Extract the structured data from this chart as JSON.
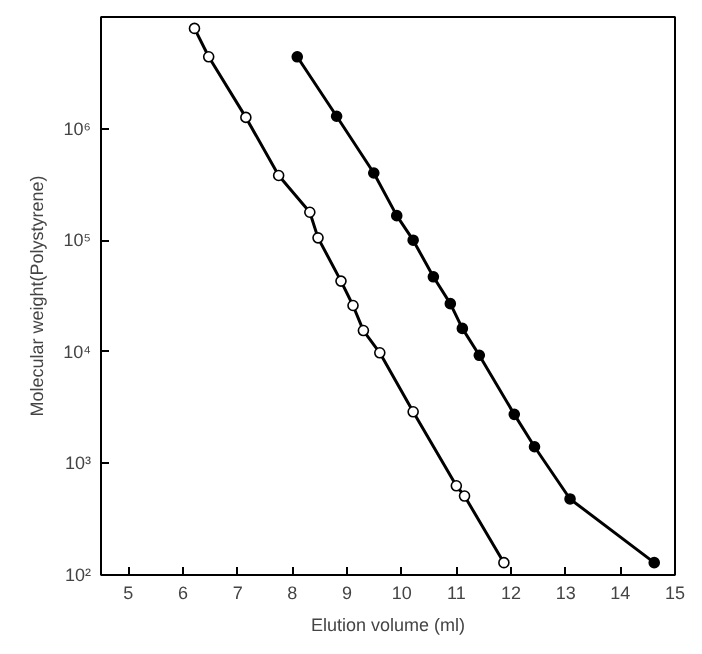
{
  "chart_data": {
    "type": "line",
    "xlabel": "Elution volume (ml)",
    "ylabel": "Molecular weight(Polystyrene)",
    "log": "y",
    "grid": false,
    "line_style": "solid",
    "xlim": [
      4.5,
      15
    ],
    "xticks": [
      5,
      6,
      7,
      8,
      9,
      10,
      11,
      12,
      13,
      14,
      15
    ],
    "ylim": [
      100,
      10000000
    ],
    "yticks": [
      {
        "value": 100,
        "label": "10²"
      },
      {
        "value": 1000,
        "label": "10³"
      },
      {
        "value": 10000,
        "label": "10⁴"
      },
      {
        "value": 100000,
        "label": "10⁵"
      },
      {
        "value": 1000000,
        "label": "10⁶"
      }
    ],
    "series": [
      {
        "color": "#000000",
        "marker": "circle",
        "x": [
          8.09,
          8.81,
          9.49,
          9.91,
          10.21,
          10.58,
          10.89,
          11.11,
          11.42,
          12.06,
          12.43,
          13.08,
          14.62
        ],
        "values": [
          4400000,
          1290000,
          400000,
          166000,
          100000,
          47000,
          27000,
          16200,
          9300,
          2750,
          1410,
          480,
          129
        ]
      },
      {
        "color": "#000000",
        "marker": "circle_open",
        "x": [
          6.21,
          6.47,
          7.15,
          7.75,
          8.32,
          8.47,
          8.89,
          9.11,
          9.3,
          9.6,
          10.21,
          11.0,
          11.15,
          11.87
        ],
        "values": [
          7900000,
          4400000,
          1260000,
          380000,
          178000,
          105000,
          43000,
          26000,
          15500,
          9800,
          2900,
          630,
          510,
          129
        ]
      }
    ]
  }
}
